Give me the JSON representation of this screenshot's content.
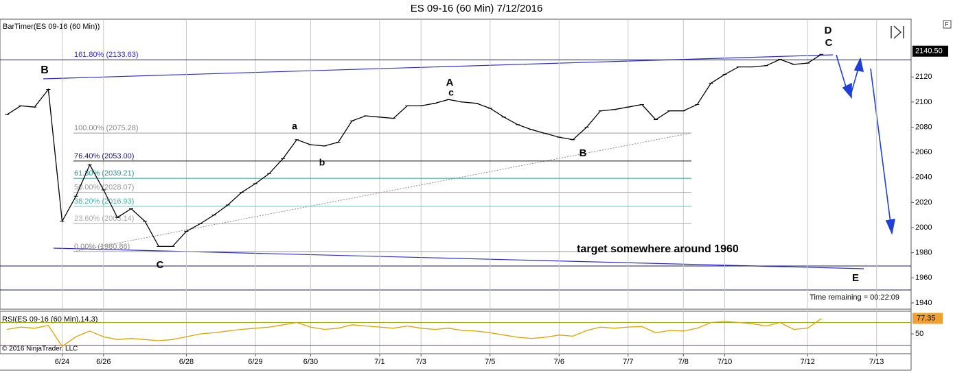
{
  "header": {
    "title": "ES 09-16 (60 Min)  7/12/2016",
    "indicator": "BarTimer(ES 09-16 (60 Min))",
    "copyright": "© 2016 NinjaTrader, LLC",
    "corner": "F"
  },
  "chart_data": [
    {
      "type": "line",
      "color": "#000000",
      "grid": true,
      "categories": [
        null,
        null,
        null,
        null,
        "6/24",
        null,
        null,
        "6/26",
        null,
        null,
        null,
        null,
        null,
        "6/28",
        null,
        null,
        null,
        null,
        "6/29",
        null,
        null,
        null,
        "6/30",
        null,
        null,
        null,
        null,
        "7/1",
        null,
        null,
        "7/3",
        null,
        null,
        null,
        null,
        "7/5",
        null,
        null,
        null,
        null,
        "7/6",
        null,
        null,
        null,
        null,
        "7/7",
        null,
        null,
        null,
        "7/8",
        null,
        null,
        "7/10",
        null,
        null,
        null,
        null,
        null,
        "7/12",
        null,
        null,
        null,
        null,
        "7/13",
        null,
        null
      ],
      "values": [
        2090,
        2097,
        2096,
        2110,
        2005,
        2025,
        2050,
        2030,
        2008,
        2015,
        2005,
        1985,
        1985,
        1997,
        2003,
        2010,
        2018,
        2028,
        2035,
        2043,
        2055,
        2070,
        2066,
        2065,
        2068,
        2085,
        2089,
        2088,
        2087,
        2097,
        2097,
        2099,
        2102,
        2100,
        2099,
        2095,
        2088,
        2082,
        2078,
        2075,
        2072,
        2070,
        2080,
        2093,
        2094,
        2096,
        2098,
        2086,
        2093,
        2093,
        2098,
        2115,
        2122,
        2128,
        2128,
        2129,
        2134,
        2130,
        2131,
        2138,
        null,
        null,
        null,
        null,
        null,
        null
      ],
      "ylim": [
        1935,
        2166
      ],
      "yticks": [
        1940,
        1960,
        1980,
        2000,
        2020,
        2040,
        2060,
        2080,
        2100,
        2120
      ],
      "last": {
        "value": 2140.5,
        "label": "2140.50"
      },
      "fib_levels": [
        {
          "value": 2133.63,
          "label": "161.80% (2133.63)"
        },
        {
          "value": 2075.28,
          "label": "100.00% (2075.28)"
        },
        {
          "value": 2053.0,
          "label": "76.40% (2053.00)"
        },
        {
          "value": 2039.21,
          "label": "61.80% (2039.21)"
        },
        {
          "value": 2028.07,
          "label": "50.00% (2028.07)"
        },
        {
          "value": 2016.93,
          "label": "38.20% (2016.93)"
        },
        {
          "value": 2003.14,
          "label": "23.60% (2003.14)"
        },
        {
          "value": 1980.86,
          "label": "0.00% (1980.86)"
        }
      ],
      "annotations": [
        "B",
        "C",
        "a",
        "b",
        "A",
        "c",
        "B",
        "D",
        "C",
        "E",
        "target somewhere around 1960",
        "Time remaining = 00:22:09"
      ]
    },
    {
      "type": "line",
      "title": "RSI(ES 09-16 (60 Min),14,3)",
      "color": "#d9a400",
      "values": [
        58,
        62,
        60,
        65,
        28,
        45,
        55,
        45,
        40,
        42,
        40,
        38,
        40,
        45,
        50,
        52,
        55,
        58,
        60,
        62,
        66,
        70,
        62,
        58,
        60,
        66,
        64,
        62,
        60,
        64,
        60,
        58,
        60,
        56,
        55,
        52,
        48,
        44,
        42,
        44,
        48,
        46,
        56,
        62,
        60,
        62,
        63,
        52,
        56,
        55,
        60,
        70,
        72,
        70,
        68,
        64,
        70,
        58,
        60,
        77,
        null,
        null,
        null,
        null,
        null,
        null
      ],
      "ylim": [
        15,
        90
      ],
      "yticks": [
        50
      ],
      "levels": [
        70,
        30
      ],
      "last": 77.35
    }
  ]
}
